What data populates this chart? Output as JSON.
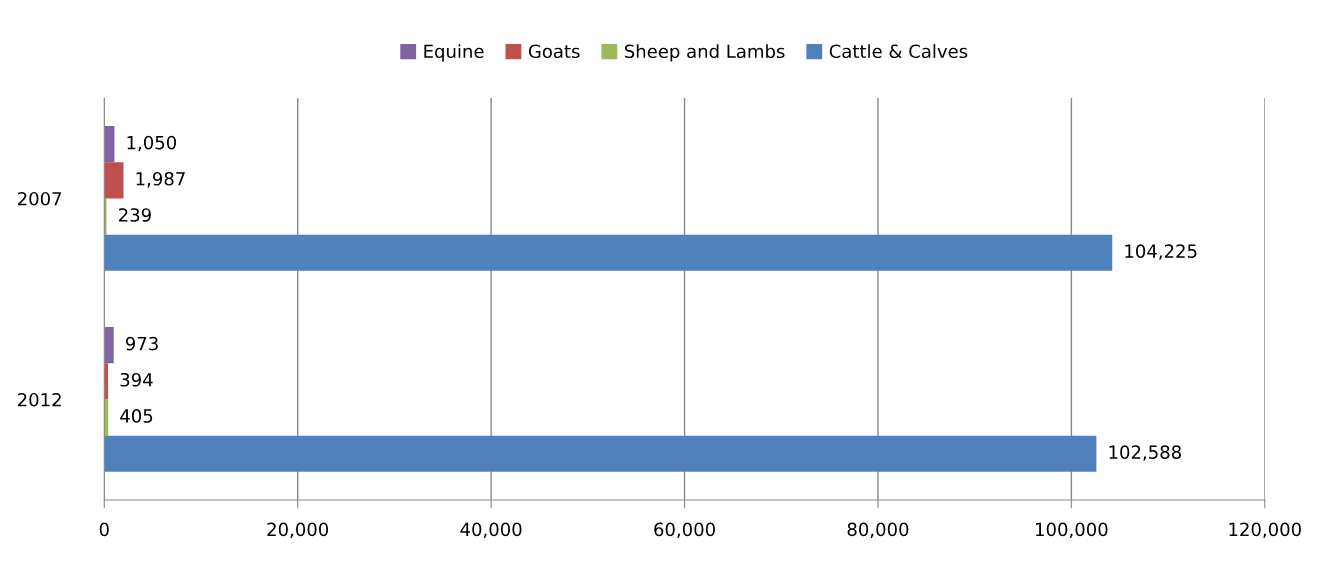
{
  "chart_data": {
    "type": "bar",
    "orientation": "horizontal",
    "categories": [
      "2007",
      "2012"
    ],
    "series": [
      {
        "name": "Equine",
        "color": "#8064a2",
        "values": [
          1050,
          973
        ],
        "value_labels": [
          "1,050",
          "973"
        ]
      },
      {
        "name": "Goats",
        "color": "#c0504d",
        "values": [
          1987,
          394
        ],
        "value_labels": [
          "1,987",
          "394"
        ]
      },
      {
        "name": "Sheep and Lambs",
        "color": "#9bbb59",
        "values": [
          239,
          405
        ],
        "value_labels": [
          "239",
          "405"
        ]
      },
      {
        "name": "Cattle & Calves",
        "color": "#4f81bd",
        "values": [
          104225,
          102588
        ],
        "value_labels": [
          "104,225",
          "102,588"
        ]
      }
    ],
    "xlim": [
      0,
      120000
    ],
    "xticks": [
      0,
      {
        "value": 20000,
        "label": "20,000"
      },
      {
        "value": 40000,
        "label": "40,000"
      },
      {
        "value": 60000,
        "label": "60,000"
      },
      {
        "value": 80000,
        "label": "80,000"
      },
      {
        "value": 100000,
        "label": "100,000"
      },
      {
        "value": 120000,
        "label": "120,000"
      }
    ],
    "grid": "x",
    "legend": "top"
  }
}
